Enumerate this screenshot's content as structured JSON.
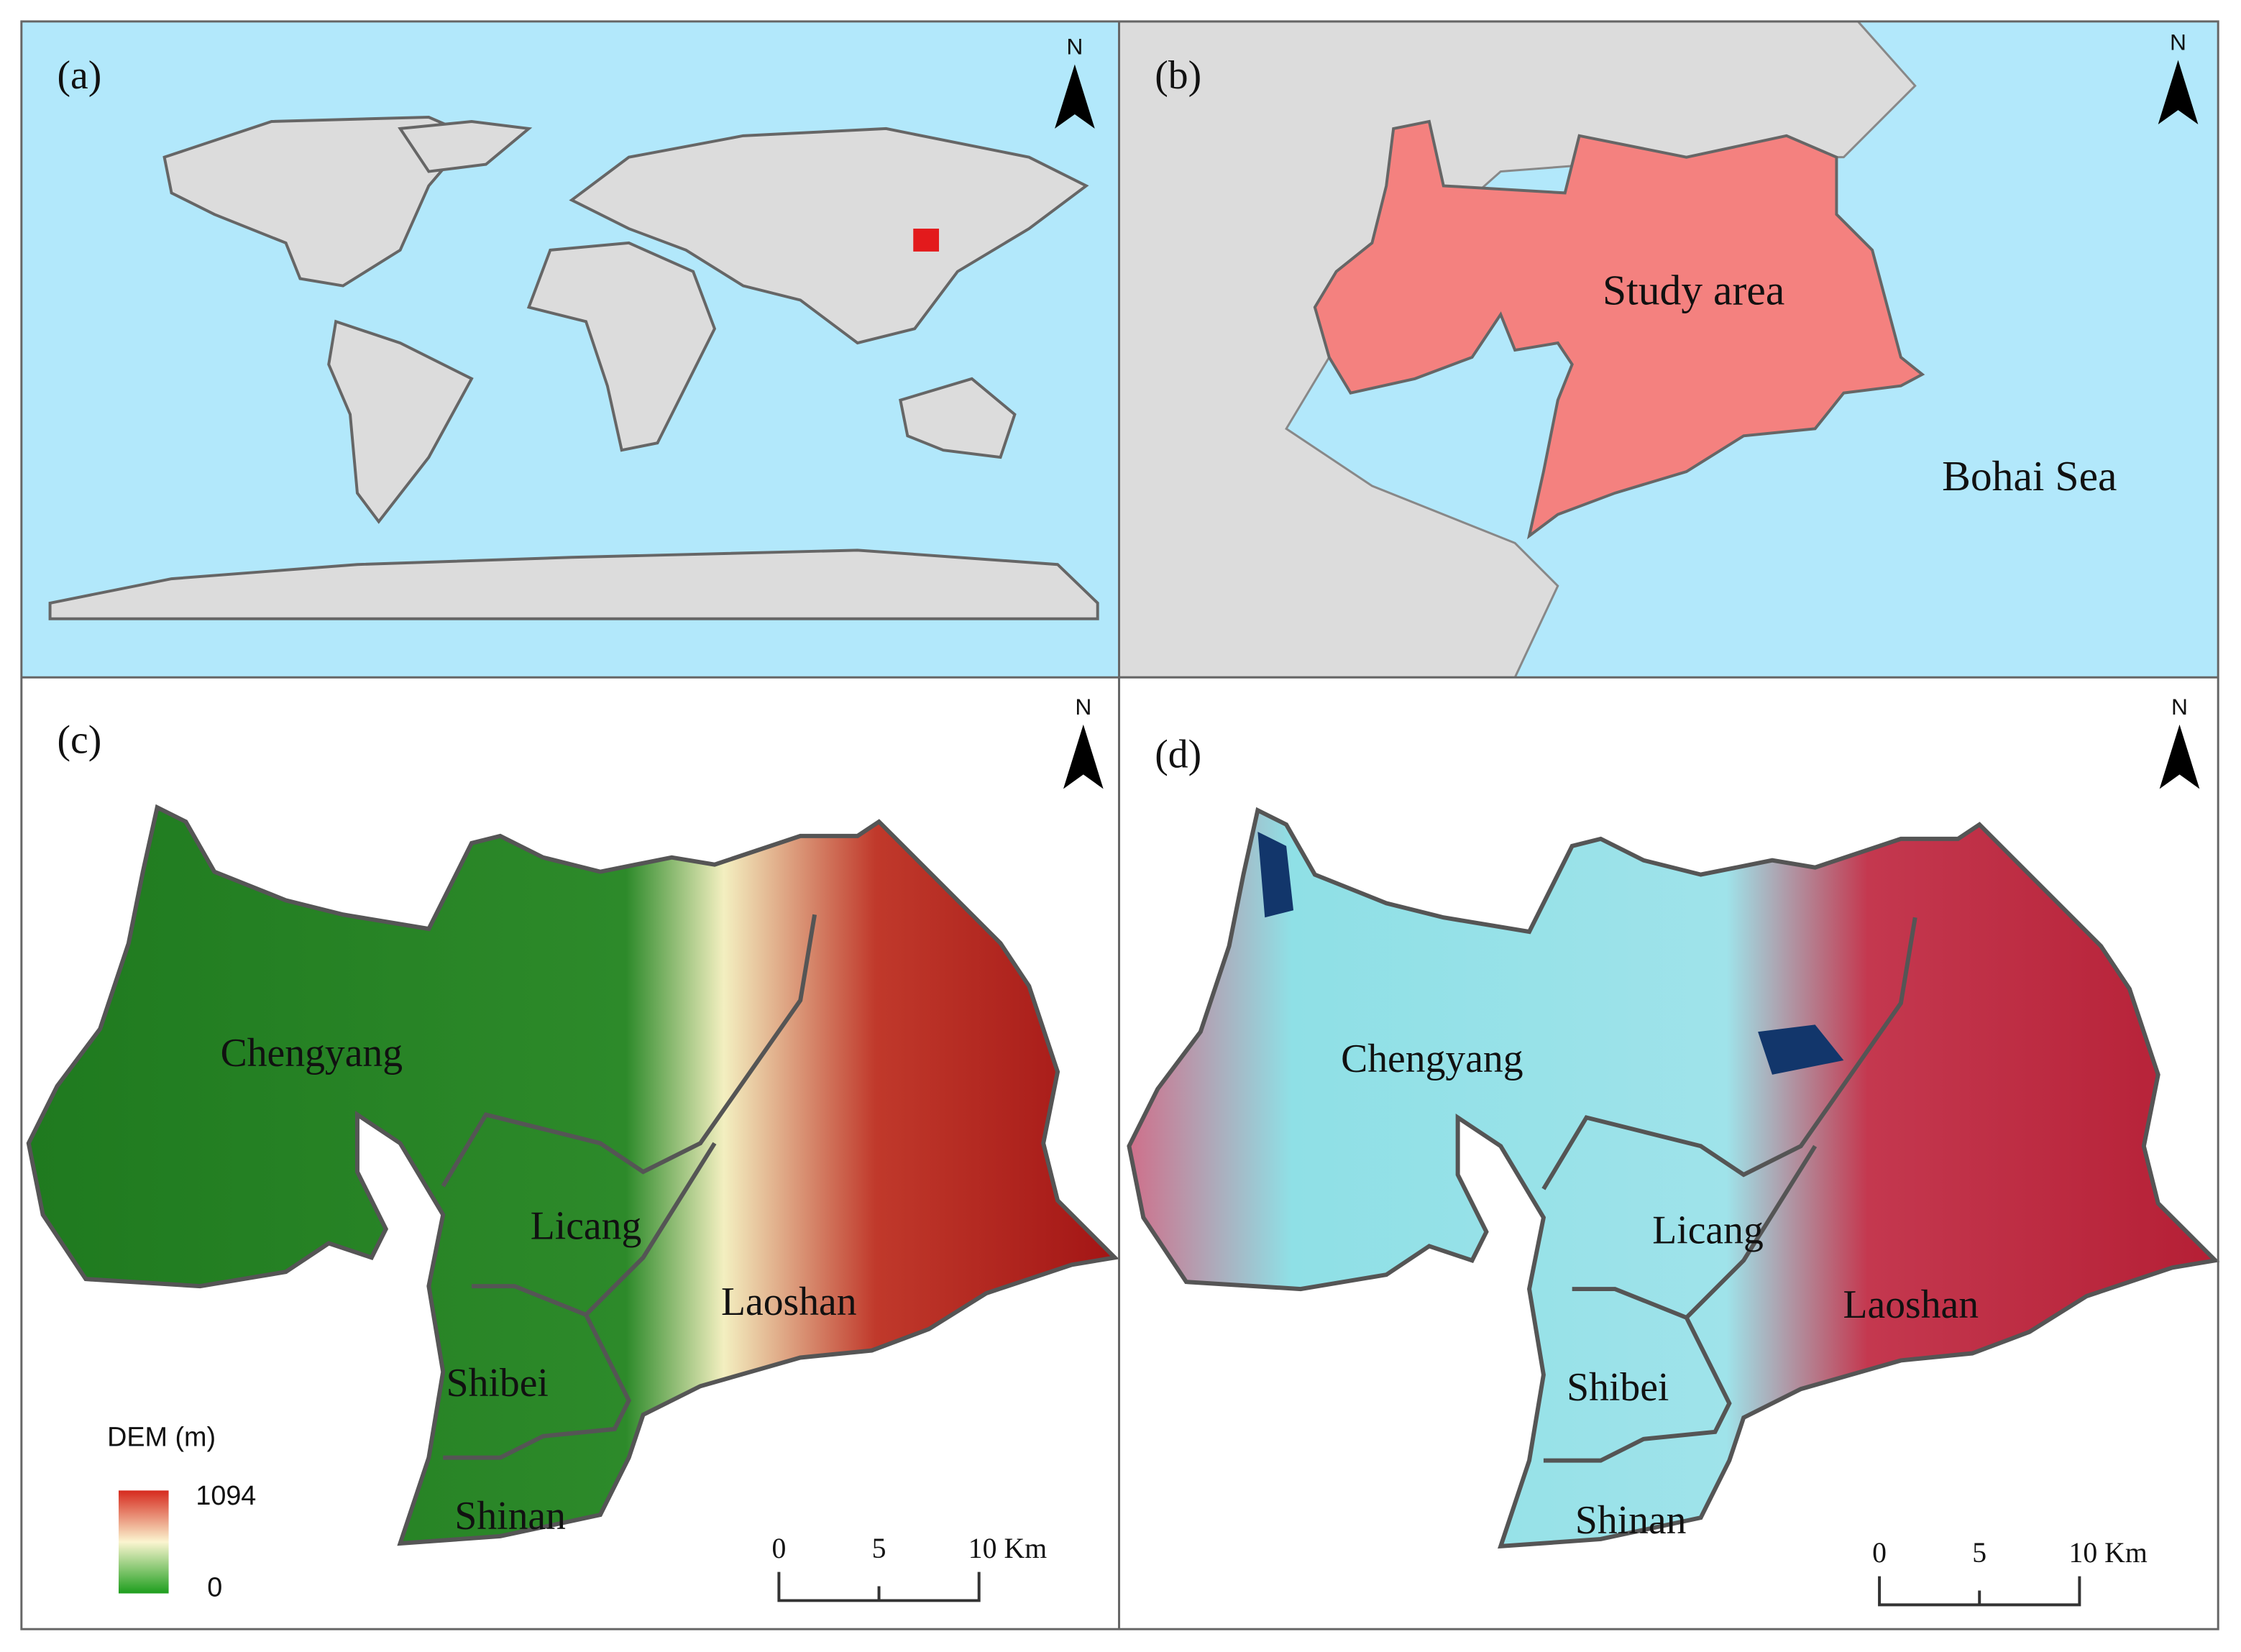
{
  "panels": [
    {
      "label": "(a)",
      "north": "N"
    },
    {
      "label": "(b)",
      "north": "N",
      "texts": [
        "Study area",
        "Bohai Sea"
      ]
    },
    {
      "label": "(c)",
      "north": "N",
      "districts": [
        "Chengyang",
        "Licang",
        "Laoshan",
        "Shibei",
        "Shinan"
      ],
      "legend": {
        "title": "DEM (m)",
        "max": "1094",
        "min": "0"
      },
      "scale": [
        "0",
        "5",
        "10 Km"
      ]
    },
    {
      "label": "(d)",
      "north": "N",
      "districts": [
        "Chengyang",
        "Licang",
        "Laoshan",
        "Shibei",
        "Shinan"
      ],
      "scale": [
        "0",
        "5",
        "10 Km"
      ]
    }
  ]
}
